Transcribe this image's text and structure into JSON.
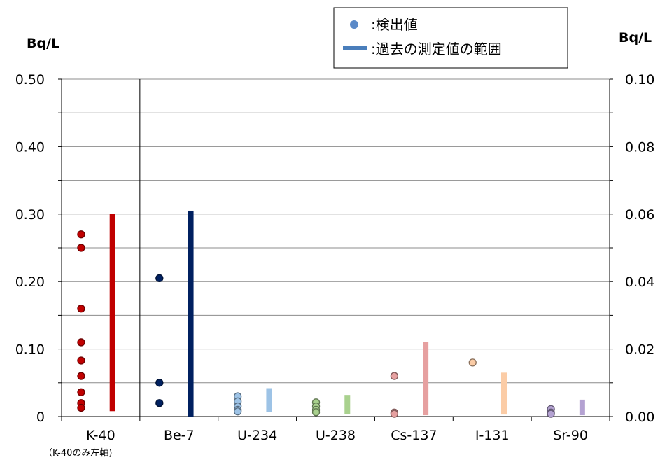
{
  "chart_data": {
    "type": "scatter",
    "left_axis": {
      "unit": "Bq/L",
      "ylim": [
        0,
        0.5
      ],
      "tick_labels": [
        "0",
        "0.10",
        "0.20",
        "0.30",
        "0.40",
        "0.50"
      ]
    },
    "right_axis": {
      "unit": "Bq/L",
      "ylim": [
        0,
        0.1
      ],
      "tick_labels": [
        "0.00",
        "0.02",
        "0.04",
        "0.06",
        "0.08",
        "0.10"
      ]
    },
    "categories": [
      "K-40",
      "Be-7",
      "U-234",
      "U-238",
      "Cs-137",
      "I-131",
      "Sr-90"
    ],
    "category_note": "（K-40のみ左軸)",
    "grid": true,
    "legend": {
      "position": "top-right",
      "detected_label": ":検出値",
      "range_label": ":過去の測定値の範囲"
    },
    "series": [
      {
        "category": "K-40",
        "axis": "left",
        "color": "#C00000",
        "detected": [
          0.27,
          0.25,
          0.16,
          0.11,
          0.083,
          0.06,
          0.036,
          0.02,
          0.013
        ],
        "range": [
          0.008,
          0.3
        ]
      },
      {
        "category": "Be-7",
        "axis": "right",
        "color": "#002060",
        "detected": [
          0.041,
          0.01,
          0.004
        ],
        "range": [
          0.0,
          0.061
        ]
      },
      {
        "category": "U-234",
        "axis": "right",
        "color": "#9DC3E6",
        "detected": [
          0.006,
          0.0045,
          0.003,
          0.002,
          0.0015
        ],
        "range": [
          0.0013,
          0.0084
        ]
      },
      {
        "category": "U-238",
        "axis": "right",
        "color": "#A9D18E",
        "detected": [
          0.0042,
          0.003,
          0.002,
          0.0013
        ],
        "range": [
          0.0007,
          0.0064
        ]
      },
      {
        "category": "Cs-137",
        "axis": "right",
        "color": "#E6A0A0",
        "detected": [
          0.012,
          0.0012,
          0.0008
        ],
        "range": [
          0.0004,
          0.022
        ]
      },
      {
        "category": "I-131",
        "axis": "right",
        "color": "#FBCCA6",
        "detected": [
          0.016
        ],
        "range": [
          0.0006,
          0.013
        ]
      },
      {
        "category": "Sr-90",
        "axis": "right",
        "color": "#B4A2D2",
        "detected": [
          0.0022,
          0.0012,
          0.0008
        ],
        "range": [
          0.0004,
          0.005
        ]
      }
    ]
  }
}
